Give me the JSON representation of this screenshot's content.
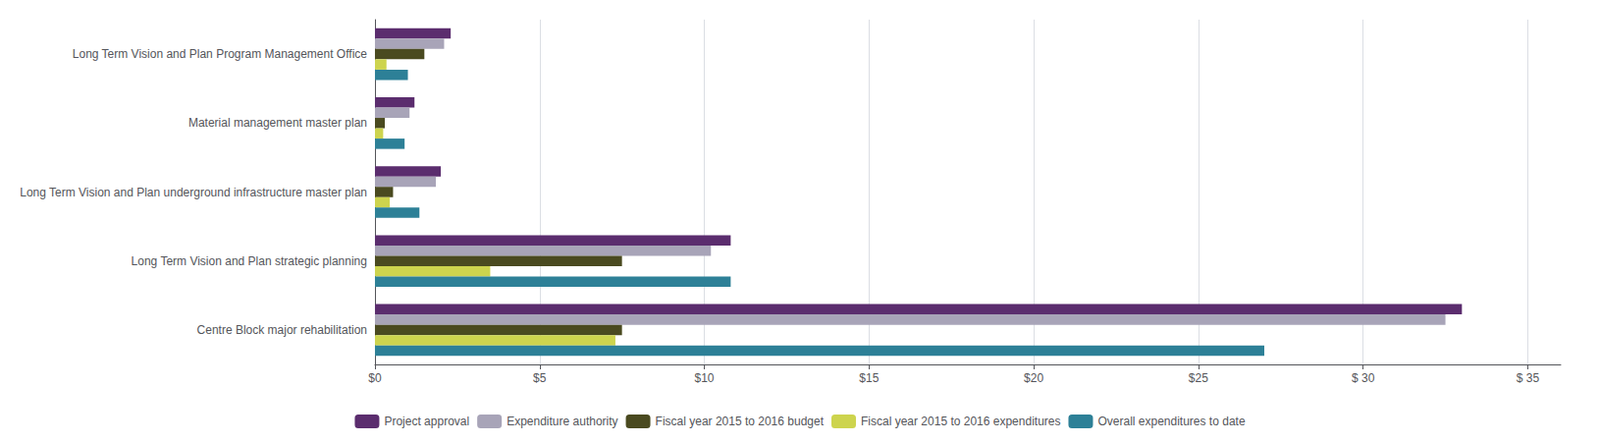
{
  "chart_data": {
    "type": "bar",
    "orientation": "horizontal",
    "categories": [
      "Long Term Vision and Plan Program Management Office",
      "Material management master plan",
      "Long Term Vision and Plan underground infrastructure master plan",
      "Long Term Vision and Plan strategic planning",
      "Centre Block major rehabilitation"
    ],
    "series": [
      {
        "name": "Project approval",
        "color": "#5b2d6e",
        "values": [
          2.3,
          1.2,
          2.0,
          10.8,
          33.0
        ]
      },
      {
        "name": "Expenditure authority",
        "color": "#a8a4b8",
        "values": [
          2.1,
          1.05,
          1.85,
          10.2,
          32.5
        ]
      },
      {
        "name": "Fiscal year 2015 to 2016 budget",
        "color": "#4a4a20",
        "values": [
          1.5,
          0.3,
          0.55,
          7.5,
          7.5
        ]
      },
      {
        "name": "Fiscal year 2015 to 2016 expenditures",
        "color": "#cdd44e",
        "values": [
          0.35,
          0.25,
          0.45,
          3.5,
          7.3
        ]
      },
      {
        "name": "Overall expenditures to date",
        "color": "#2d8097",
        "values": [
          1.0,
          0.9,
          1.35,
          10.8,
          27.0
        ]
      }
    ],
    "xlim": [
      0,
      36
    ],
    "xticks": [
      {
        "value": 0,
        "label": "$0"
      },
      {
        "value": 5,
        "label": "$5"
      },
      {
        "value": 10,
        "label": "$10"
      },
      {
        "value": 15,
        "label": "$15"
      },
      {
        "value": 20,
        "label": "$20"
      },
      {
        "value": 25,
        "label": "$25"
      },
      {
        "value": 30,
        "label": "$ 30"
      },
      {
        "value": 35,
        "label": "$ 35"
      }
    ],
    "grid": true,
    "legend": "bottom"
  }
}
